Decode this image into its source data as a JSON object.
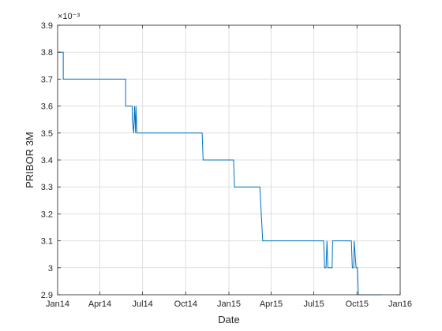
{
  "chart_data": {
    "type": "line",
    "xlabel": "Date",
    "ylabel": "PRIBOR 3M",
    "y_exponent_label": "×10⁻³",
    "x_ticks": [
      {
        "date": "2014-01-01",
        "label": "Jan14"
      },
      {
        "date": "2014-04-01",
        "label": "Apr14"
      },
      {
        "date": "2014-07-01",
        "label": "Jul14"
      },
      {
        "date": "2014-10-01",
        "label": "Oct14"
      },
      {
        "date": "2015-01-01",
        "label": "Jan15"
      },
      {
        "date": "2015-04-01",
        "label": "Apr15"
      },
      {
        "date": "2015-07-01",
        "label": "Jul15"
      },
      {
        "date": "2015-10-01",
        "label": "Oct15"
      },
      {
        "date": "2016-01-01",
        "label": "Jan16"
      }
    ],
    "y_ticks": [
      {
        "value": 2.9,
        "label": "2.9"
      },
      {
        "value": 3.0,
        "label": "3"
      },
      {
        "value": 3.1,
        "label": "3.1"
      },
      {
        "value": 3.2,
        "label": "3.2"
      },
      {
        "value": 3.3,
        "label": "3.3"
      },
      {
        "value": 3.4,
        "label": "3.4"
      },
      {
        "value": 3.5,
        "label": "3.5"
      },
      {
        "value": 3.6,
        "label": "3.6"
      },
      {
        "value": 3.7,
        "label": "3.7"
      },
      {
        "value": 3.8,
        "label": "3.8"
      },
      {
        "value": 3.9,
        "label": "3.9"
      }
    ],
    "xlim": [
      "2014-01-01",
      "2016-01-01"
    ],
    "ylim": [
      2.9,
      3.9
    ],
    "grid": true,
    "series": [
      {
        "color": "#0072BD",
        "points": [
          [
            "2014-01-01",
            3.8
          ],
          [
            "2014-01-13",
            3.8
          ],
          [
            "2014-01-13",
            3.7
          ],
          [
            "2014-05-26",
            3.7
          ],
          [
            "2014-05-26",
            3.6
          ],
          [
            "2014-06-09",
            3.6
          ],
          [
            "2014-06-09",
            3.55
          ],
          [
            "2014-06-12",
            3.5
          ],
          [
            "2014-06-14",
            3.6
          ],
          [
            "2014-06-16",
            3.5
          ],
          [
            "2014-06-17",
            3.6
          ],
          [
            "2014-06-19",
            3.5
          ],
          [
            "2014-11-05",
            3.5
          ],
          [
            "2014-11-07",
            3.4
          ],
          [
            "2015-01-11",
            3.4
          ],
          [
            "2015-01-13",
            3.3
          ],
          [
            "2015-03-08",
            3.3
          ],
          [
            "2015-03-14",
            3.1
          ],
          [
            "2015-07-22",
            3.1
          ],
          [
            "2015-07-24",
            3.0
          ],
          [
            "2015-07-27",
            3.0
          ],
          [
            "2015-07-29",
            3.1
          ],
          [
            "2015-07-31",
            3.0
          ],
          [
            "2015-08-09",
            3.0
          ],
          [
            "2015-08-10",
            3.1
          ],
          [
            "2015-09-19",
            3.1
          ],
          [
            "2015-09-21",
            3.0
          ],
          [
            "2015-09-24",
            3.0
          ],
          [
            "2015-09-25",
            3.1
          ],
          [
            "2015-09-29",
            3.0
          ],
          [
            "2015-10-02",
            3.0
          ],
          [
            "2015-10-04",
            2.9
          ],
          [
            "2015-11-22",
            2.9
          ]
        ]
      }
    ]
  }
}
